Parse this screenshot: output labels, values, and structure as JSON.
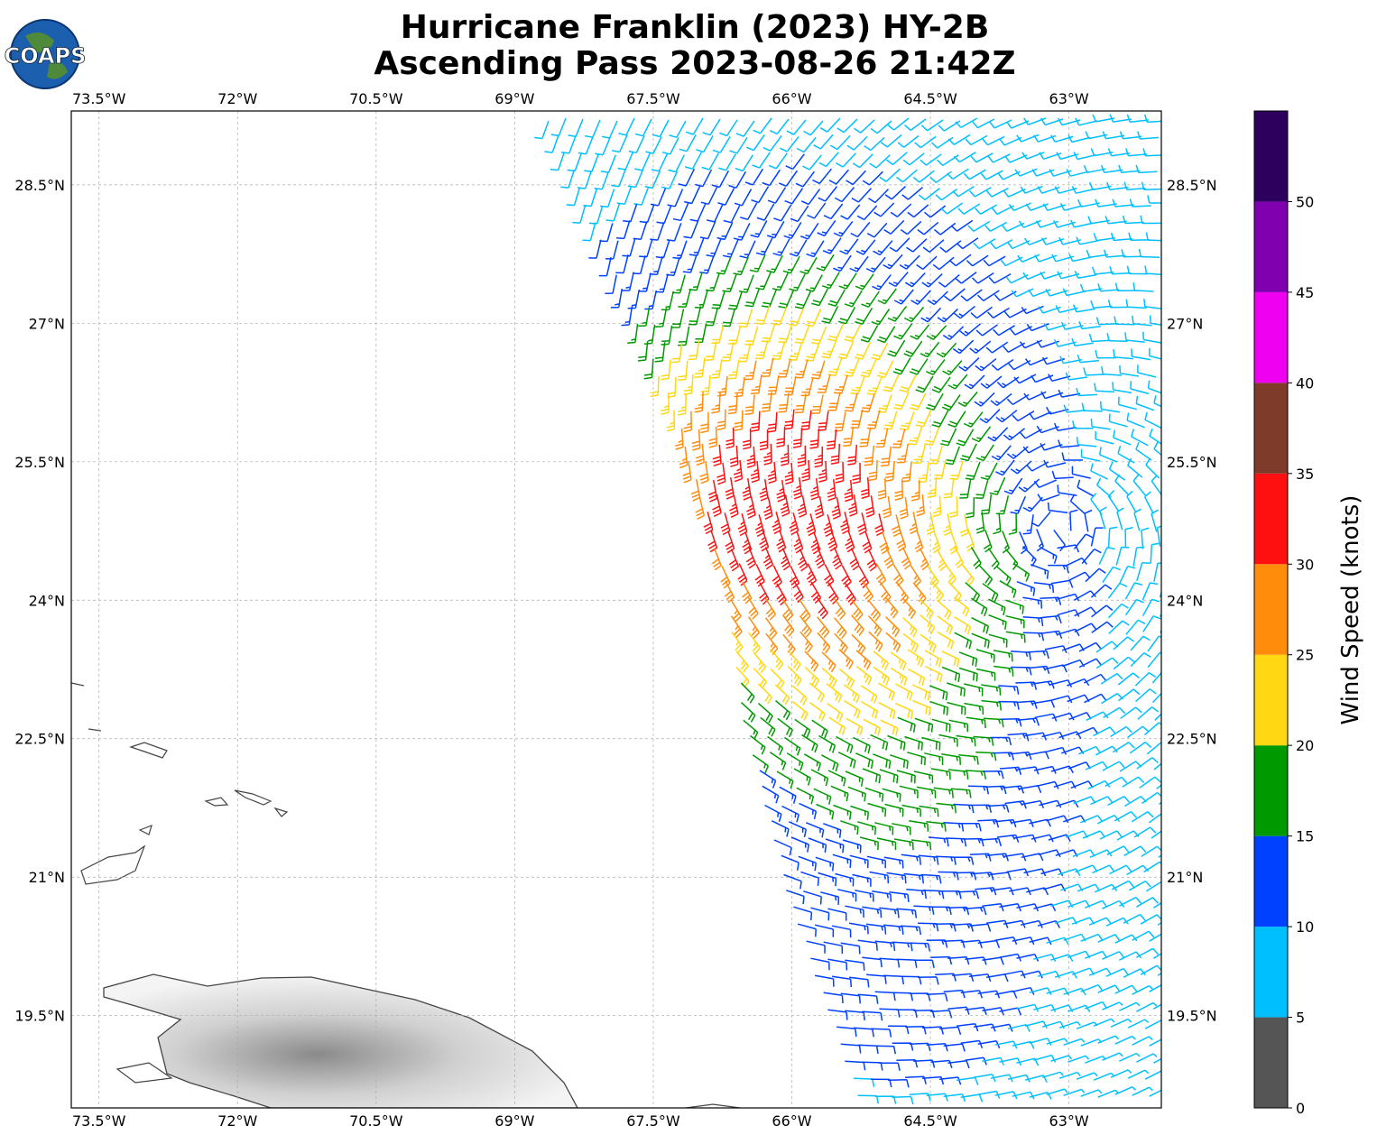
{
  "logo": "COAPS",
  "chart_data": {
    "type": "wind-barb-map",
    "title": [
      "Hurricane Franklin (2023) HY-2B",
      "Ascending Pass 2023-08-26 21:42Z"
    ],
    "xlim": [
      -73.8,
      -62.0
    ],
    "ylim": [
      18.5,
      29.3
    ],
    "xticks": [
      {
        "value": -73.5,
        "label": "73.5°W"
      },
      {
        "value": -72,
        "label": "72°W"
      },
      {
        "value": -70.5,
        "label": "70.5°W"
      },
      {
        "value": -69,
        "label": "69°W"
      },
      {
        "value": -67.5,
        "label": "67.5°W"
      },
      {
        "value": -66,
        "label": "66°W"
      },
      {
        "value": -64.5,
        "label": "64.5°W"
      },
      {
        "value": -63,
        "label": "63°W"
      }
    ],
    "yticks": [
      {
        "value": 19.5,
        "label": "19.5°N"
      },
      {
        "value": 21,
        "label": "21°N"
      },
      {
        "value": 22.5,
        "label": "22.5°N"
      },
      {
        "value": 24,
        "label": "24°N"
      },
      {
        "value": 25.5,
        "label": "25.5°N"
      },
      {
        "value": 27,
        "label": "27°N"
      },
      {
        "value": 28.5,
        "label": "28.5°N"
      }
    ],
    "grid": true,
    "colorbar": {
      "label": "Wind Speed (knots)",
      "lim": [
        0,
        55
      ],
      "ticks": [
        0,
        5,
        10,
        15,
        20,
        25,
        30,
        35,
        40,
        45,
        50
      ],
      "colors": [
        "#555555",
        "#00bfff",
        "#0040ff",
        "#009900",
        "#ffd712",
        "#ff8c0a",
        "#ff1010",
        "#7f3b2a",
        "#f000f0",
        "#8000b0",
        "#2e005e"
      ]
    }
  }
}
